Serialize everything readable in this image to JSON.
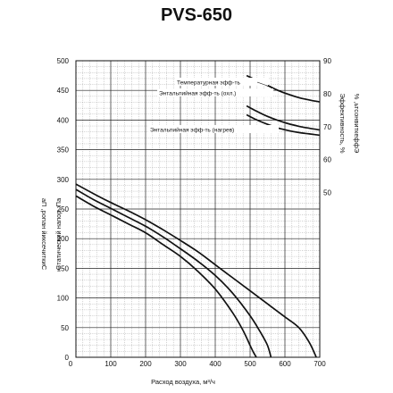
{
  "chart_data": {
    "type": "line",
    "title": "PVS-650",
    "xlabel": "Расход воздуха, м³/ч",
    "ylabel_left": "Статический напор, Па",
    "ylabel_right": "Эффективность, %",
    "ylabel_right2": "% ,ьтсонвиткеффЭ",
    "ylabel_left2": "аП ,ропан йиксечиткиС",
    "xlim": [
      0,
      700
    ],
    "ylim": [
      0,
      500
    ],
    "ylim_right": [
      0,
      90
    ],
    "x_ticks": [
      0,
      100,
      200,
      300,
      400,
      500,
      600,
      700
    ],
    "y_ticks": [
      0,
      50,
      100,
      150,
      200,
      250,
      300,
      350,
      400,
      450,
      500
    ],
    "y_right_ticks": [
      50,
      60,
      70,
      80,
      90
    ],
    "grid": true,
    "pressure_series": [
      {
        "x": [
          0,
          50,
          100,
          150,
          200,
          250,
          300,
          350,
          400,
          450,
          480,
          500,
          510,
          518
        ],
        "y": [
          272,
          255,
          240,
          225,
          210,
          190,
          170,
          145,
          115,
          75,
          45,
          20,
          8,
          0
        ]
      },
      {
        "x": [
          0,
          50,
          100,
          150,
          200,
          250,
          300,
          350,
          400,
          450,
          500,
          530,
          550,
          560
        ],
        "y": [
          283,
          266,
          251,
          236,
          221,
          203,
          183,
          162,
          138,
          108,
          70,
          42,
          20,
          0
        ]
      },
      {
        "x": [
          0,
          50,
          100,
          150,
          200,
          250,
          300,
          350,
          400,
          450,
          500,
          550,
          600,
          640,
          670,
          690
        ],
        "y": [
          292,
          276,
          261,
          247,
          232,
          215,
          197,
          178,
          156,
          134,
          112,
          90,
          68,
          50,
          25,
          0
        ]
      }
    ],
    "efficiency_series": [
      {
        "x": [
          490,
          520,
          550,
          580,
          610,
          640,
          670,
          700
        ],
        "y": [
          85.5,
          84,
          82.5,
          81,
          79.8,
          78.8,
          78.1,
          77.5
        ]
      },
      {
        "x": [
          490,
          520,
          550,
          580,
          610,
          640,
          670,
          700
        ],
        "y": [
          76.3,
          74.6,
          73.1,
          71.9,
          70.9,
          70.1,
          69.5,
          69
        ]
      },
      {
        "x": [
          490,
          520,
          550,
          580,
          610,
          640,
          670,
          700
        ],
        "y": [
          73.6,
          72.0,
          70.7,
          69.6,
          68.8,
          68.2,
          67.8,
          67.4
        ]
      }
    ],
    "annotations": [
      "Температурная эфф-ть",
      "Энтальпийная эфф-ть (охл.)",
      "Энтальпийная эфф-ть (нагрев)"
    ]
  }
}
